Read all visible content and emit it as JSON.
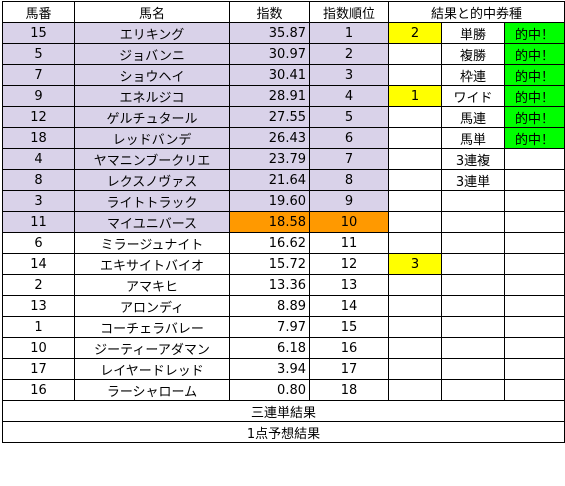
{
  "headers": {
    "number": "馬番",
    "name": "馬名",
    "index": "指数",
    "rank": "指数順位",
    "result": "結果と的中券種"
  },
  "rows": [
    {
      "num": "15",
      "name": "エリキング",
      "index": "35.87",
      "rank": "1",
      "finish": "2",
      "ticket": "単勝",
      "hit": "的中！"
    },
    {
      "num": "5",
      "name": "ジョバンニ",
      "index": "30.97",
      "rank": "2",
      "finish": "",
      "ticket": "複勝",
      "hit": "的中！"
    },
    {
      "num": "7",
      "name": "ショウヘイ",
      "index": "30.41",
      "rank": "3",
      "finish": "",
      "ticket": "枠連",
      "hit": "的中！"
    },
    {
      "num": "9",
      "name": "エネルジコ",
      "index": "28.91",
      "rank": "4",
      "finish": "1",
      "ticket": "ワイド",
      "hit": "的中！"
    },
    {
      "num": "12",
      "name": "ゲルチュタール",
      "index": "27.55",
      "rank": "5",
      "finish": "",
      "ticket": "馬連",
      "hit": "的中！"
    },
    {
      "num": "18",
      "name": "レッドバンデ",
      "index": "26.43",
      "rank": "6",
      "finish": "",
      "ticket": "馬単",
      "hit": "的中！"
    },
    {
      "num": "4",
      "name": "ヤマニンブークリエ",
      "index": "23.79",
      "rank": "7",
      "finish": "",
      "ticket": "3連複",
      "hit": ""
    },
    {
      "num": "8",
      "name": "レクスノヴァス",
      "index": "21.64",
      "rank": "8",
      "finish": "",
      "ticket": "3連単",
      "hit": ""
    },
    {
      "num": "3",
      "name": "ライトトラック",
      "index": "19.60",
      "rank": "9",
      "finish": "",
      "ticket": "",
      "hit": ""
    },
    {
      "num": "11",
      "name": "マイユニバース",
      "index": "18.58",
      "rank": "10",
      "finish": "",
      "ticket": "",
      "hit": ""
    },
    {
      "num": "6",
      "name": "ミラージュナイト",
      "index": "16.62",
      "rank": "11",
      "finish": "",
      "ticket": "",
      "hit": ""
    },
    {
      "num": "14",
      "name": "エキサイトバイオ",
      "index": "15.72",
      "rank": "12",
      "finish": "3",
      "ticket": "",
      "hit": ""
    },
    {
      "num": "2",
      "name": "アマキヒ",
      "index": "13.36",
      "rank": "13",
      "finish": "",
      "ticket": "",
      "hit": ""
    },
    {
      "num": "13",
      "name": "アロンディ",
      "index": "8.89",
      "rank": "14",
      "finish": "",
      "ticket": "",
      "hit": ""
    },
    {
      "num": "1",
      "name": "コーチェラバレー",
      "index": "7.97",
      "rank": "15",
      "finish": "",
      "ticket": "",
      "hit": ""
    },
    {
      "num": "10",
      "name": "ジーティーアダマン",
      "index": "6.18",
      "rank": "16",
      "finish": "",
      "ticket": "",
      "hit": ""
    },
    {
      "num": "17",
      "name": "レイヤードレッド",
      "index": "3.94",
      "rank": "17",
      "finish": "",
      "ticket": "",
      "hit": ""
    },
    {
      "num": "16",
      "name": "ラーシャローム",
      "index": "0.80",
      "rank": "18",
      "finish": "",
      "ticket": "",
      "hit": ""
    }
  ],
  "footer": {
    "trifecta_result": "三連単結果",
    "one_point_result": "1点予想結果"
  },
  "colors": {
    "highlight_rows": "#d9d2e9",
    "cutoff": "#ff9900",
    "finish": "#ffff00",
    "hit": "#00ff00"
  }
}
